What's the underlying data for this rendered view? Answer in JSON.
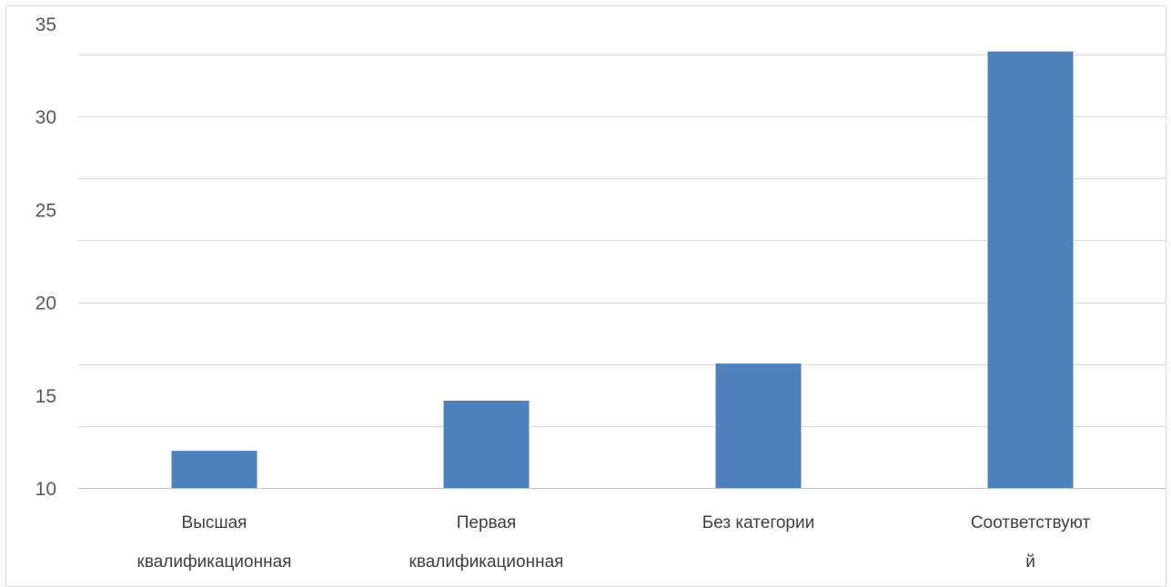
{
  "chart_data": {
    "type": "bar",
    "categories": [
      [
        "Высшая",
        "квалификационная"
      ],
      [
        "Первая",
        "квалификационная"
      ],
      [
        "Без категории"
      ],
      [
        "Соответствуют",
        "й"
      ]
    ],
    "values": [
      12.0,
      14.7,
      16.7,
      33.5
    ],
    "ylim": [
      10,
      35
    ],
    "y_ticks": [
      10,
      15,
      20,
      25,
      30,
      35
    ],
    "gridline_step": 3.333,
    "grid": true,
    "bar_color": "#4f81bd",
    "grid_color": "#d9d9d9",
    "axis_color": "#bfbfbf"
  }
}
